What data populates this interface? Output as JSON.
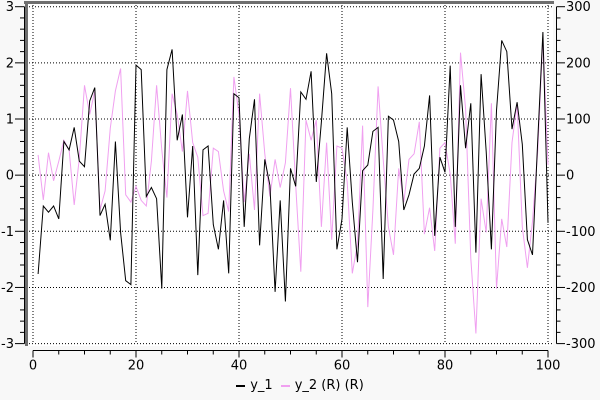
{
  "window": {
    "background": "#f8f8f8"
  },
  "chart_data": {
    "type": "line",
    "title": "",
    "xlabel": "",
    "ylabel_left": "",
    "ylabel_right": "",
    "grid": {
      "shown": true,
      "style": "dotted",
      "color": "#000000"
    },
    "plot_background": "#ffffff",
    "frame_color": "#6e6e6e",
    "x_axis": {
      "range": [
        0,
        100
      ],
      "major_ticks": [
        0,
        20,
        40,
        60,
        80,
        100
      ],
      "tick_labels": [
        "0",
        "20",
        "40",
        "60",
        "80",
        "100"
      ],
      "minor_step": 5
    },
    "y_axis_left": {
      "range": [
        -3,
        3
      ],
      "major_ticks": [
        3,
        2,
        1,
        0,
        -1,
        -2,
        -3
      ],
      "tick_labels": [
        "3",
        "2",
        "1",
        "0",
        "-1",
        "-2",
        "-3"
      ],
      "minor_step": 0.2
    },
    "y_axis_right": {
      "range": [
        -300,
        300
      ],
      "major_ticks": [
        300,
        200,
        100,
        0,
        -100,
        -200,
        -300
      ],
      "tick_labels": [
        "300",
        "200",
        "100",
        "0",
        "-100",
        "-200",
        "-300"
      ],
      "minor_step": 20
    },
    "legend": {
      "position": "bottom",
      "entries": [
        {
          "label": "y_1",
          "color": "#000000"
        },
        {
          "label": "y_2 (R) (R)",
          "color": "#f0a0f0"
        }
      ]
    },
    "x": [
      1,
      2,
      3,
      4,
      5,
      6,
      7,
      8,
      9,
      10,
      11,
      12,
      13,
      14,
      15,
      16,
      17,
      18,
      19,
      20,
      21,
      22,
      23,
      24,
      25,
      26,
      27,
      28,
      29,
      30,
      31,
      32,
      33,
      34,
      35,
      36,
      37,
      38,
      39,
      40,
      41,
      42,
      43,
      44,
      45,
      46,
      47,
      48,
      49,
      50,
      51,
      52,
      53,
      54,
      55,
      56,
      57,
      58,
      59,
      60,
      61,
      62,
      63,
      64,
      65,
      66,
      67,
      68,
      69,
      70,
      71,
      72,
      73,
      74,
      75,
      76,
      77,
      78,
      79,
      80,
      81,
      82,
      83,
      84,
      85,
      86,
      87,
      88,
      89,
      90,
      91,
      92,
      93,
      94,
      95,
      96,
      97,
      98,
      99,
      100
    ],
    "series": [
      {
        "name": "y_1",
        "axis": "left",
        "color": "#000000",
        "values": [
          -1.76,
          -0.55,
          -0.66,
          -0.55,
          -0.78,
          0.6,
          0.45,
          0.85,
          0.25,
          0.15,
          1.32,
          1.56,
          -0.72,
          -0.52,
          -1.16,
          0.6,
          -1.02,
          -1.88,
          -1.95,
          1.96,
          1.88,
          -0.38,
          -0.22,
          -0.42,
          -2.02,
          1.88,
          2.24,
          0.62,
          1.08,
          -0.75,
          0.52,
          -1.78,
          0.45,
          0.52,
          -0.88,
          -1.32,
          -0.45,
          -1.75,
          1.45,
          1.38,
          -0.92,
          0.65,
          1.35,
          -1.25,
          0.28,
          -0.18,
          -2.08,
          -0.45,
          -2.25,
          0.12,
          -0.2,
          1.48,
          1.35,
          1.85,
          -0.12,
          0.95,
          2.17,
          1.45,
          -1.32,
          -0.78,
          0.85,
          -0.48,
          -1.55,
          0.08,
          0.18,
          0.78,
          0.85,
          -1.85,
          1.05,
          0.98,
          0.6,
          -0.62,
          -0.35,
          0.02,
          0.12,
          0.52,
          1.42,
          -1.08,
          0.32,
          0.05,
          1.95,
          -0.92,
          1.6,
          0.48,
          1.28,
          -1.38,
          1.8,
          0.42,
          -1.32,
          1.15,
          2.4,
          2.2,
          0.82,
          1.3,
          0.55,
          -1.15,
          -1.42,
          0.6,
          2.55,
          -0.85
        ]
      },
      {
        "name": "y_2 (R)",
        "axis": "right",
        "color": "#f0a0f0",
        "values": [
          36,
          -44,
          40,
          -10,
          25,
          62,
          45,
          -53,
          30,
          160,
          108,
          150,
          -62,
          -28,
          84,
          150,
          190,
          -35,
          -48,
          -20,
          -45,
          -55,
          25,
          160,
          45,
          -40,
          145,
          108,
          42,
          150,
          58,
          32,
          -72,
          -68,
          48,
          42,
          -28,
          -65,
          175,
          108,
          -48,
          38,
          -62,
          145,
          38,
          -38,
          28,
          -22,
          22,
          155,
          -18,
          -172,
          98,
          62,
          98,
          -92,
          58,
          -115,
          52,
          48,
          -12,
          -175,
          -122,
          88,
          -235,
          -62,
          158,
          28,
          -92,
          -142,
          12,
          -48,
          28,
          38,
          95,
          -105,
          -58,
          -135,
          48,
          58,
          2,
          -122,
          218,
          118,
          -148,
          -282,
          -42,
          -102,
          128,
          -202,
          -78,
          -128,
          58,
          128,
          -92,
          -165,
          -82,
          42,
          245,
          18
        ]
      }
    ]
  }
}
